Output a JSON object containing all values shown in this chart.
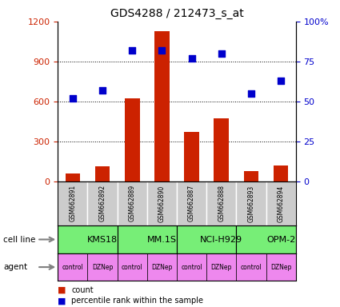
{
  "title": "GDS4288 / 212473_s_at",
  "samples": [
    "GSM662891",
    "GSM662892",
    "GSM662889",
    "GSM662890",
    "GSM662887",
    "GSM662888",
    "GSM662893",
    "GSM662894"
  ],
  "counts": [
    60,
    110,
    620,
    1130,
    370,
    470,
    75,
    120
  ],
  "percentile_ranks": [
    52,
    57,
    82,
    82,
    77,
    80,
    55,
    63
  ],
  "cell_lines": [
    {
      "name": "KMS18",
      "start": 0,
      "end": 2,
      "color": "#77ee77"
    },
    {
      "name": "MM.1S",
      "start": 2,
      "end": 4,
      "color": "#77ee77"
    },
    {
      "name": "NCI-H929",
      "start": 4,
      "end": 6,
      "color": "#77ee77"
    },
    {
      "name": "OPM-2",
      "start": 6,
      "end": 8,
      "color": "#77ee77"
    }
  ],
  "agents": [
    "control",
    "DZNep",
    "control",
    "DZNep",
    "control",
    "DZNep",
    "control",
    "DZNep"
  ],
  "agent_colors": [
    "#ee88ee",
    "#ee88ee",
    "#ee88ee",
    "#ee88ee",
    "#ee88ee",
    "#ee88ee",
    "#ee88ee",
    "#ee88ee"
  ],
  "bar_color": "#cc2200",
  "dot_color": "#0000cc",
  "sample_bg_color": "#cccccc",
  "left_ylim": [
    0,
    1200
  ],
  "right_ylim": [
    0,
    100
  ],
  "left_yticks": [
    0,
    300,
    600,
    900,
    1200
  ],
  "right_yticks": [
    0,
    25,
    50,
    75,
    100
  ],
  "right_yticklabels": [
    "0",
    "25",
    "50",
    "75",
    "100%"
  ],
  "cell_line_label": "cell line",
  "agent_label": "agent",
  "legend_count_label": "count",
  "legend_percentile_label": "percentile rank within the sample",
  "bar_width": 0.5,
  "dot_size": 28
}
